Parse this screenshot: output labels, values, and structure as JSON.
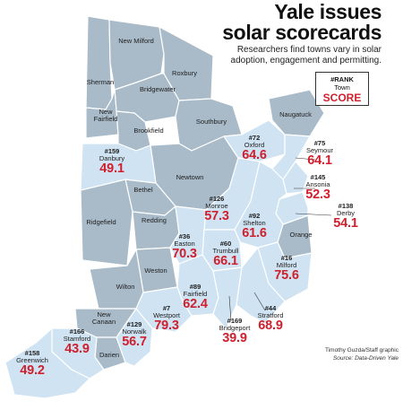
{
  "header": {
    "title_line1": "Yale issues",
    "title_line2": "solar scorecards",
    "subtitle": "Researchers find towns vary in solar adoption, engagement and permitting."
  },
  "legend": {
    "rank": "#RANK",
    "town": "Town",
    "score": "SCORE"
  },
  "credit": {
    "line1": "Timothy Guzda/Staff graphic",
    "line2": "Source: Data-Driven Yale"
  },
  "colors": {
    "score_red": "#d0202e",
    "highlight_town": "#cfe3f2",
    "other_town": "#a9bbc9"
  },
  "scored_towns": [
    {
      "id": "danbury",
      "rank": "#159",
      "name": "Danbury",
      "score": "49.1"
    },
    {
      "id": "oxford",
      "rank": "#72",
      "name": "Oxford",
      "score": "64.6"
    },
    {
      "id": "seymour",
      "rank": "#75",
      "name": "Seymour",
      "score": "64.1"
    },
    {
      "id": "ansonia",
      "rank": "#145",
      "name": "Ansonia",
      "score": "52.3"
    },
    {
      "id": "derby",
      "rank": "#138",
      "name": "Derby",
      "score": "54.1"
    },
    {
      "id": "monroe",
      "rank": "#126",
      "name": "Monroe",
      "score": "57.3"
    },
    {
      "id": "shelton",
      "rank": "#92",
      "name": "Shelton",
      "score": "61.6"
    },
    {
      "id": "easton",
      "rank": "#36",
      "name": "Easton",
      "score": "70.3"
    },
    {
      "id": "trumbull",
      "rank": "#60",
      "name": "Trumbull",
      "score": "66.1"
    },
    {
      "id": "milford",
      "rank": "#16",
      "name": "Milford",
      "score": "75.6"
    },
    {
      "id": "fairfield",
      "rank": "#89",
      "name": "Fairfield",
      "score": "62.4"
    },
    {
      "id": "westport",
      "rank": "#7",
      "name": "Westport",
      "score": "79.3"
    },
    {
      "id": "stratford",
      "rank": "#44",
      "name": "Stratford",
      "score": "68.9"
    },
    {
      "id": "bridgeport",
      "rank": "#169",
      "name": "Bridgeport",
      "score": "39.9"
    },
    {
      "id": "norwalk",
      "rank": "#129",
      "name": "Norwalk",
      "score": "56.7"
    },
    {
      "id": "stamford",
      "rank": "#166",
      "name": "Stamford",
      "score": "43.9"
    },
    {
      "id": "greenwich",
      "rank": "#158",
      "name": "Greenwich",
      "score": "49.2"
    }
  ],
  "other_towns": [
    {
      "id": "new-milford",
      "name": "New Milford"
    },
    {
      "id": "sherman",
      "name": "Sherman"
    },
    {
      "id": "roxbury",
      "name": "Roxbury"
    },
    {
      "id": "bridgewater",
      "name": "Bridgewater"
    },
    {
      "id": "new-fairfield",
      "name": "New Fairfield"
    },
    {
      "id": "southbury",
      "name": "Southbury"
    },
    {
      "id": "naugatuck",
      "name": "Naugatuck"
    },
    {
      "id": "brookfield",
      "name": "Brookfield"
    },
    {
      "id": "newtown",
      "name": "Newtown"
    },
    {
      "id": "bethel",
      "name": "Bethel"
    },
    {
      "id": "ridgefield",
      "name": "Ridgefield"
    },
    {
      "id": "redding",
      "name": "Redding"
    },
    {
      "id": "orange",
      "name": "Orange"
    },
    {
      "id": "weston",
      "name": "Weston"
    },
    {
      "id": "wilton",
      "name": "Wilton"
    },
    {
      "id": "new-canaan",
      "name": "New Canaan"
    },
    {
      "id": "darien",
      "name": "Darien"
    }
  ]
}
